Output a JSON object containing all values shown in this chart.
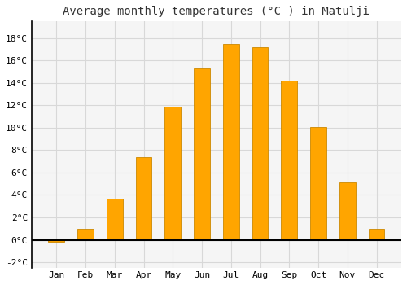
{
  "title": "Average monthly temperatures (°C ) in Matulji",
  "months": [
    "Jan",
    "Feb",
    "Mar",
    "Apr",
    "May",
    "Jun",
    "Jul",
    "Aug",
    "Sep",
    "Oct",
    "Nov",
    "Dec"
  ],
  "values": [
    -0.2,
    1.0,
    3.7,
    7.4,
    11.9,
    15.3,
    17.5,
    17.2,
    14.2,
    10.1,
    5.1,
    1.0
  ],
  "bar_color": "#FFA500",
  "bar_edge_color": "#CC8800",
  "ylim": [
    -2.5,
    19.5
  ],
  "ytick_values": [
    -2,
    0,
    2,
    4,
    6,
    8,
    10,
    12,
    14,
    16,
    18
  ],
  "grid_color": "#d8d8d8",
  "plot_bg_color": "#f5f5f5",
  "background_color": "#ffffff",
  "title_fontsize": 10,
  "tick_fontsize": 8,
  "font_family": "monospace"
}
